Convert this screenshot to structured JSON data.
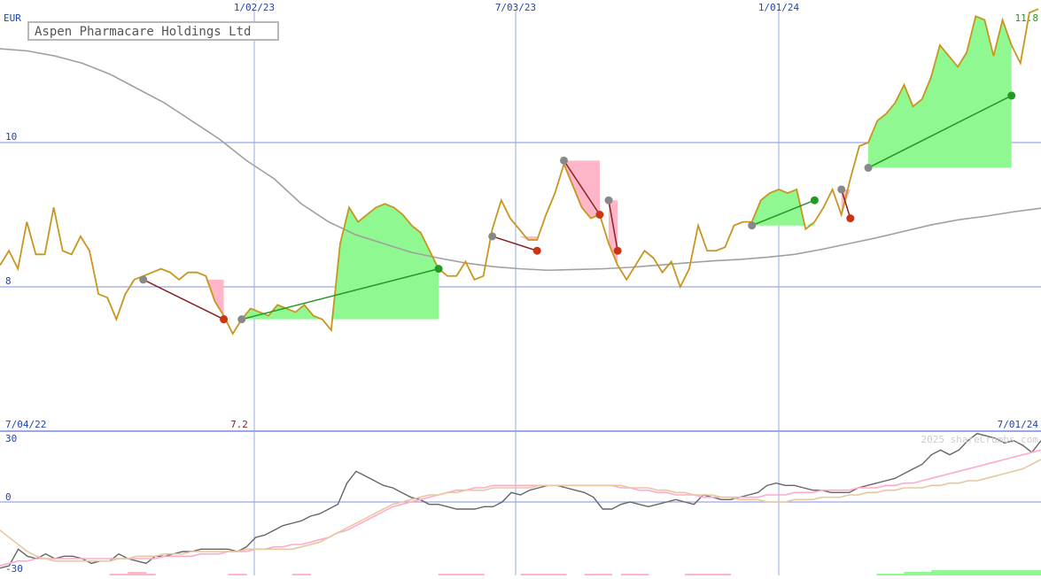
{
  "title": "Aspen Pharmacare Holdings Ltd",
  "currency": "EUR",
  "watermark": "2025 shareCrumbs.com",
  "colors": {
    "price": "#c8961e",
    "sma_long": "#a0a0a0",
    "gain_fill": "#90f890",
    "loss_fill": "#ffb6c8",
    "gain_line": "#229922",
    "loss_line": "#882222",
    "grid": "#9aa8e8",
    "osc_line": "#666666",
    "osc_pink": "#ffaacc",
    "osc_tan": "#e6c8a0"
  },
  "chart_data": [
    {
      "type": "line",
      "name": "price-panel",
      "title": "Aspen Pharmacare Holdings Ltd",
      "ylabel": "EUR",
      "ylim": [
        6.7,
        11.85
      ],
      "date_range": [
        "7/04/22",
        "7/01/24"
      ],
      "x_ticks": [
        "1/02/23",
        "7/03/23",
        "1/01/24"
      ],
      "y_ticks": [
        8,
        10
      ],
      "y_tick_labels": [
        "8",
        "10"
      ],
      "annotations": {
        "low_label": "7.2",
        "high_label": "11.8"
      },
      "series": [
        {
          "values": [
            8.3,
            8.5,
            8.25,
            8.9,
            8.45,
            8.45,
            9.1,
            8.5,
            8.45,
            8.7,
            8.5,
            7.9,
            7.85,
            7.55,
            7.9,
            8.1,
            8.15,
            8.2,
            8.25,
            8.2,
            8.1,
            8.2,
            8.2,
            8.15,
            7.8,
            7.6,
            7.35,
            7.55,
            7.7,
            7.65,
            7.6,
            7.75,
            7.7,
            7.65,
            7.75,
            7.6,
            7.55,
            7.4,
            8.6,
            9.1,
            8.9,
            9.0,
            9.1,
            9.15,
            9.1,
            9.0,
            8.85,
            8.75,
            8.5,
            8.25,
            8.15,
            8.15,
            8.35,
            8.1,
            8.15,
            8.8,
            9.2,
            8.95,
            8.8,
            8.65,
            8.65,
            9.0,
            9.3,
            9.7,
            9.4,
            9.1,
            8.95,
            9.0,
            8.6,
            8.3,
            8.1,
            8.3,
            8.5,
            8.4,
            8.2,
            8.35,
            8.0,
            8.25,
            8.85,
            8.5,
            8.5,
            8.55,
            8.85,
            8.9,
            8.9,
            9.2,
            9.3,
            9.35,
            9.3,
            9.35,
            8.8,
            8.9,
            9.1,
            9.35,
            9.0,
            9.5,
            9.95,
            10.0,
            10.3,
            10.4,
            10.55,
            10.8,
            10.5,
            10.6,
            10.9,
            11.35,
            11.2,
            11.05,
            11.25,
            11.75,
            11.7,
            11.2,
            11.7,
            11.35,
            11.1,
            11.8,
            11.85
          ]
        },
        {
          "values": [
            11.3,
            11.27,
            11.2,
            11.1,
            10.95,
            10.75,
            10.55,
            10.3,
            10.05,
            9.75,
            9.5,
            9.15,
            8.9,
            8.72,
            8.6,
            8.48,
            8.4,
            8.33,
            8.28,
            8.25,
            8.23,
            8.24,
            8.25,
            8.27,
            8.3,
            8.33,
            8.36,
            8.38,
            8.41,
            8.45,
            8.52,
            8.6,
            8.68,
            8.77,
            8.86,
            8.93,
            8.98,
            9.04,
            9.09
          ]
        }
      ],
      "trades": [
        {
          "entry": [
            16,
            8.1
          ],
          "exit": [
            25,
            7.55
          ],
          "result": "loss"
        },
        {
          "entry": [
            27,
            7.55
          ],
          "exit": [
            49,
            8.25
          ],
          "result": "gain"
        },
        {
          "entry": [
            55,
            8.7
          ],
          "exit": [
            60,
            8.5
          ],
          "result": "loss"
        },
        {
          "entry": [
            63,
            9.75
          ],
          "exit": [
            67,
            9.0
          ],
          "result": "loss"
        },
        {
          "entry": [
            68,
            9.2
          ],
          "exit": [
            69,
            8.5
          ],
          "result": "loss"
        },
        {
          "entry": [
            84,
            8.85
          ],
          "exit": [
            91,
            9.2
          ],
          "result": "gain"
        },
        {
          "entry": [
            94,
            9.35
          ],
          "exit": [
            95,
            8.95
          ],
          "result": "loss"
        },
        {
          "entry": [
            97,
            9.65
          ],
          "exit": [
            113,
            10.65
          ],
          "result": "gain"
        }
      ]
    },
    {
      "type": "line",
      "name": "oscillator-panel",
      "ylim": [
        -30,
        30
      ],
      "y_ticks": [
        30,
        0,
        -30
      ],
      "y_tick_labels": [
        "30",
        "0",
        "-30"
      ],
      "series": [
        {
          "values": [
            -28,
            -27,
            -20,
            -23,
            -24,
            -22,
            -24,
            -23,
            -23,
            -24,
            -26,
            -25,
            -25,
            -22,
            -24,
            -25,
            -26,
            -23,
            -23,
            -22,
            -21,
            -21,
            -20,
            -20,
            -20,
            -20,
            -21,
            -19,
            -15,
            -14,
            -12,
            -10,
            -9,
            -8,
            -6,
            -5,
            -3,
            -1,
            8,
            13,
            11,
            9,
            7,
            6,
            4,
            2,
            1,
            -1,
            -1,
            -2,
            -3,
            -3,
            -3,
            -2,
            -2,
            0,
            4,
            3,
            5,
            6,
            7,
            7,
            6,
            5,
            4,
            2,
            -3,
            -3,
            -1,
            0,
            -1,
            -2,
            -1,
            0,
            1,
            0,
            -1,
            3,
            2,
            1,
            1,
            2,
            3,
            4,
            7,
            8,
            7,
            7,
            6,
            5,
            5,
            4,
            4,
            4,
            6,
            7,
            8,
            9,
            10,
            12,
            14,
            16,
            20,
            22,
            20,
            22,
            26,
            29,
            28,
            27,
            25,
            26,
            24,
            21,
            26
          ]
        },
        {
          "values": [
            -27,
            -26,
            -25,
            -25,
            -24,
            -24,
            -24,
            -24,
            -24,
            -24,
            -24,
            -24,
            -24,
            -24,
            -24,
            -24,
            -24,
            -24,
            -23,
            -23,
            -23,
            -23,
            -22,
            -22,
            -22,
            -21,
            -21,
            -21,
            -20,
            -20,
            -19,
            -19,
            -18,
            -18,
            -17,
            -16,
            -15,
            -13,
            -12,
            -10,
            -8,
            -6,
            -4,
            -2,
            -1,
            0,
            1,
            2,
            3,
            4,
            5,
            5,
            6,
            6,
            7,
            7,
            7,
            7,
            7,
            7,
            7,
            7,
            7,
            7,
            7,
            7,
            7,
            7,
            6,
            6,
            5,
            5,
            4,
            4,
            3,
            3,
            3,
            2,
            2,
            2,
            2,
            2,
            2,
            2,
            3,
            3,
            3,
            4,
            4,
            4,
            5,
            5,
            5,
            5,
            6,
            6,
            6,
            7,
            7,
            8,
            8,
            9,
            10,
            11,
            12,
            13,
            14,
            15,
            16,
            17,
            18,
            19,
            20,
            21,
            22
          ]
        },
        {
          "values": [
            -12,
            -15,
            -18,
            -21,
            -23,
            -24,
            -25,
            -25,
            -25,
            -25,
            -25,
            -25,
            -25,
            -24,
            -24,
            -23,
            -23,
            -23,
            -22,
            -22,
            -22,
            -21,
            -21,
            -21,
            -21,
            -21,
            -21,
            -20,
            -20,
            -20,
            -20,
            -20,
            -20,
            -19,
            -18,
            -17,
            -15,
            -13,
            -11,
            -9,
            -7,
            -5,
            -3,
            -1,
            0,
            1,
            2,
            3,
            3,
            4,
            4,
            5,
            5,
            5,
            6,
            6,
            6,
            6,
            6,
            7,
            7,
            7,
            7,
            7,
            7,
            7,
            7,
            7,
            7,
            6,
            6,
            6,
            5,
            5,
            4,
            4,
            3,
            3,
            3,
            2,
            2,
            1,
            1,
            1,
            0,
            0,
            0,
            1,
            1,
            1,
            2,
            2,
            2,
            3,
            3,
            4,
            4,
            5,
            5,
            6,
            6,
            6,
            7,
            7,
            8,
            8,
            9,
            9,
            10,
            11,
            12,
            13,
            14,
            16,
            18
          ]
        }
      ],
      "bars": {
        "description": "volume-like histogram",
        "values": [
          0,
          0,
          0,
          0,
          0,
          0,
          0,
          0,
          0,
          0,
          0,
          0,
          -1,
          -1,
          -2,
          -2,
          -1,
          0,
          0,
          0,
          0,
          0,
          0,
          0,
          0,
          -1,
          -1,
          0,
          0,
          0,
          0,
          0,
          -1,
          -1,
          0,
          0,
          0,
          0,
          0,
          0,
          0,
          0,
          0,
          0,
          0,
          0,
          0,
          0,
          -1,
          -1,
          -1,
          -1,
          -1,
          0,
          0,
          0,
          0,
          -1,
          -1,
          -1,
          -1,
          -1,
          0,
          0,
          -1,
          -1,
          -1,
          0,
          -1,
          -1,
          -1,
          0,
          0,
          0,
          0,
          -1,
          -1,
          -1,
          -1,
          -1,
          0,
          0,
          0,
          0,
          0,
          0,
          0,
          0,
          0,
          0,
          0,
          0,
          0,
          0,
          0,
          0,
          1,
          1,
          1,
          2,
          2,
          2,
          3,
          3,
          3,
          3,
          3,
          3,
          3,
          3,
          3,
          3,
          3,
          3
        ]
      }
    }
  ]
}
